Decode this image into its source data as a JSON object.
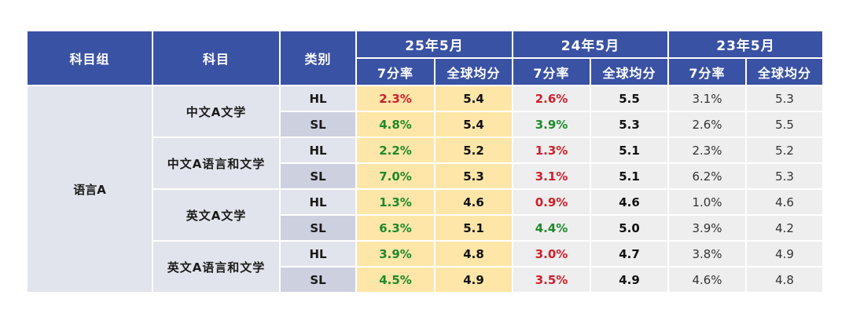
{
  "headers": {
    "group": "科目组",
    "subject": "科目",
    "level": "类别",
    "periods": [
      "25年5月",
      "24年5月",
      "23年5月"
    ],
    "metrics": [
      "7分率",
      "全球均分"
    ]
  },
  "colors": {
    "header_bg": "#3a52a4",
    "highlight_col_bg": "#fde6a8",
    "increase_text": "#1e8a2a",
    "decrease_text": "#d0202a"
  },
  "group": "语言A",
  "subjects": [
    {
      "name": "中文A文学",
      "rows": [
        {
          "level": "HL",
          "p25_rate": "2.3%",
          "p25_rate_trend": "down",
          "p25_avg": "5.4",
          "p24_rate": "2.6%",
          "p24_rate_trend": "down",
          "p24_avg": "5.5",
          "p23_rate": "3.1%",
          "p23_avg": "5.3"
        },
        {
          "level": "SL",
          "p25_rate": "4.8%",
          "p25_rate_trend": "up",
          "p25_avg": "5.4",
          "p24_rate": "3.9%",
          "p24_rate_trend": "up",
          "p24_avg": "5.3",
          "p23_rate": "2.6%",
          "p23_avg": "5.5"
        }
      ]
    },
    {
      "name": "中文A语言和文学",
      "rows": [
        {
          "level": "HL",
          "p25_rate": "2.2%",
          "p25_rate_trend": "up",
          "p25_avg": "5.2",
          "p24_rate": "1.3%",
          "p24_rate_trend": "down",
          "p24_avg": "5.1",
          "p23_rate": "2.3%",
          "p23_avg": "5.2"
        },
        {
          "level": "SL",
          "p25_rate": "7.0%",
          "p25_rate_trend": "up",
          "p25_avg": "5.3",
          "p24_rate": "3.1%",
          "p24_rate_trend": "down",
          "p24_avg": "5.1",
          "p23_rate": "6.2%",
          "p23_avg": "5.3"
        }
      ]
    },
    {
      "name": "英文A文学",
      "rows": [
        {
          "level": "HL",
          "p25_rate": "1.3%",
          "p25_rate_trend": "up",
          "p25_avg": "4.6",
          "p24_rate": "0.9%",
          "p24_rate_trend": "down",
          "p24_avg": "4.6",
          "p23_rate": "1.0%",
          "p23_avg": "4.6"
        },
        {
          "level": "SL",
          "p25_rate": "6.3%",
          "p25_rate_trend": "up",
          "p25_avg": "5.1",
          "p24_rate": "4.4%",
          "p24_rate_trend": "up",
          "p24_avg": "5.0",
          "p23_rate": "3.9%",
          "p23_avg": "4.2"
        }
      ]
    },
    {
      "name": "英文A语言和文学",
      "rows": [
        {
          "level": "HL",
          "p25_rate": "3.9%",
          "p25_rate_trend": "up",
          "p25_avg": "4.8",
          "p24_rate": "3.0%",
          "p24_rate_trend": "down",
          "p24_avg": "4.7",
          "p23_rate": "3.8%",
          "p23_avg": "4.9"
        },
        {
          "level": "SL",
          "p25_rate": "4.5%",
          "p25_rate_trend": "up",
          "p25_avg": "4.9",
          "p24_rate": "3.5%",
          "p24_rate_trend": "down",
          "p24_avg": "4.9",
          "p23_rate": "4.6%",
          "p23_avg": "4.8"
        }
      ]
    }
  ]
}
